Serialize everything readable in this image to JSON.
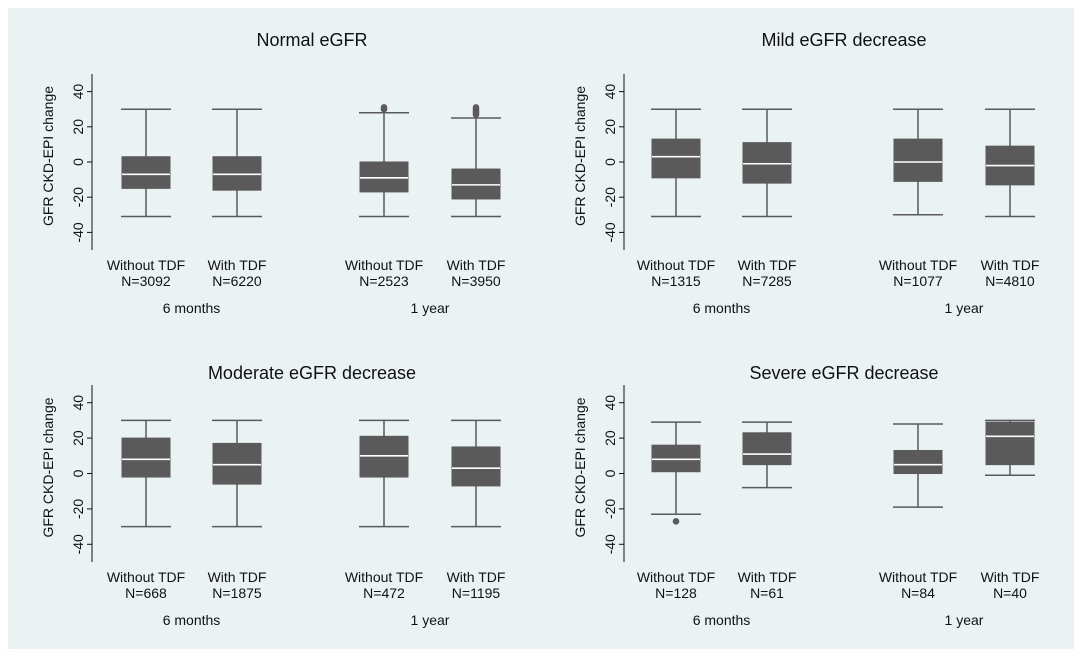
{
  "chart_data": [
    {
      "type": "box",
      "title": "Normal eGFR",
      "ylabel": "GFR CKD-EPI change",
      "ylim": [
        -50,
        50
      ],
      "yticks": [
        "-40",
        "-20",
        "0",
        "20",
        "40"
      ],
      "groups": [
        "6 months",
        "1 year"
      ],
      "boxes": [
        {
          "group": "6 months",
          "label": "Without TDF",
          "n": "N=3092",
          "whisker_low": -31,
          "q1": -15,
          "median": -7,
          "q3": 3,
          "whisker_high": 30,
          "outliers": []
        },
        {
          "group": "6 months",
          "label": "With TDF",
          "n": "N=6220",
          "whisker_low": -31,
          "q1": -16,
          "median": -7,
          "q3": 3,
          "whisker_high": 30,
          "outliers": []
        },
        {
          "group": "1 year",
          "label": "Without TDF",
          "n": "N=2523",
          "whisker_low": -31,
          "q1": -17,
          "median": -9,
          "q3": 0,
          "whisker_high": 28,
          "outliers": [
            30,
            31
          ]
        },
        {
          "group": "1 year",
          "label": "With TDF",
          "n": "N=3950",
          "whisker_low": -31,
          "q1": -21,
          "median": -13,
          "q3": -4,
          "whisker_high": 25,
          "outliers": [
            27,
            28,
            29,
            30,
            31
          ]
        }
      ]
    },
    {
      "type": "box",
      "title": "Mild eGFR decrease",
      "ylabel": "GFR CKD-EPI change",
      "ylim": [
        -50,
        50
      ],
      "yticks": [
        "-40",
        "-20",
        "0",
        "20",
        "40"
      ],
      "groups": [
        "6 months",
        "1 year"
      ],
      "boxes": [
        {
          "group": "6 months",
          "label": "Without TDF",
          "n": "N=1315",
          "whisker_low": -31,
          "q1": -9,
          "median": 3,
          "q3": 13,
          "whisker_high": 30,
          "outliers": []
        },
        {
          "group": "6 months",
          "label": "With TDF",
          "n": "N=7285",
          "whisker_low": -31,
          "q1": -12,
          "median": -1,
          "q3": 11,
          "whisker_high": 30,
          "outliers": []
        },
        {
          "group": "1 year",
          "label": "Without TDF",
          "n": "N=1077",
          "whisker_low": -30,
          "q1": -11,
          "median": 0,
          "q3": 13,
          "whisker_high": 30,
          "outliers": []
        },
        {
          "group": "1 year",
          "label": "With TDF",
          "n": "N=4810",
          "whisker_low": -31,
          "q1": -13,
          "median": -2,
          "q3": 9,
          "whisker_high": 30,
          "outliers": []
        }
      ]
    },
    {
      "type": "box",
      "title": "Moderate eGFR decrease",
      "ylabel": "GFR CKD-EPI change",
      "ylim": [
        -50,
        50
      ],
      "yticks": [
        "-40",
        "-20",
        "0",
        "20",
        "40"
      ],
      "groups": [
        "6 months",
        "1 year"
      ],
      "boxes": [
        {
          "group": "6 months",
          "label": "Without TDF",
          "n": "N=668",
          "whisker_low": -30,
          "q1": -2,
          "median": 8,
          "q3": 20,
          "whisker_high": 30,
          "outliers": []
        },
        {
          "group": "6 months",
          "label": "With TDF",
          "n": "N=1875",
          "whisker_low": -30,
          "q1": -6,
          "median": 5,
          "q3": 17,
          "whisker_high": 30,
          "outliers": []
        },
        {
          "group": "1 year",
          "label": "Without TDF",
          "n": "N=472",
          "whisker_low": -30,
          "q1": -2,
          "median": 10,
          "q3": 21,
          "whisker_high": 30,
          "outliers": []
        },
        {
          "group": "1 year",
          "label": "With TDF",
          "n": "N=1195",
          "whisker_low": -30,
          "q1": -7,
          "median": 3,
          "q3": 15,
          "whisker_high": 30,
          "outliers": []
        }
      ]
    },
    {
      "type": "box",
      "title": "Severe eGFR decrease",
      "ylabel": "GFR CKD-EPI change",
      "ylim": [
        -50,
        50
      ],
      "yticks": [
        "-40",
        "-20",
        "0",
        "20",
        "40"
      ],
      "groups": [
        "6 months",
        "1 year"
      ],
      "boxes": [
        {
          "group": "6 months",
          "label": "Without TDF",
          "n": "N=128",
          "whisker_low": -23,
          "q1": 1,
          "median": 8,
          "q3": 16,
          "whisker_high": 29,
          "outliers": [
            -27
          ]
        },
        {
          "group": "6 months",
          "label": "With TDF",
          "n": "N=61",
          "whisker_low": -8,
          "q1": 5,
          "median": 11,
          "q3": 23,
          "whisker_high": 29,
          "outliers": []
        },
        {
          "group": "1 year",
          "label": "Without TDF",
          "n": "N=84",
          "whisker_low": -19,
          "q1": 0,
          "median": 5,
          "q3": 13,
          "whisker_high": 28,
          "outliers": []
        },
        {
          "group": "1 year",
          "label": "With TDF",
          "n": "N=40",
          "whisker_low": -1,
          "q1": 5,
          "median": 21,
          "q3": 29,
          "whisker_high": 30,
          "outliers": []
        }
      ]
    }
  ],
  "colors": {
    "background": "#eaf2f3",
    "box": "#5a5a5a",
    "median": "#ffffff",
    "axis": "#111111"
  }
}
